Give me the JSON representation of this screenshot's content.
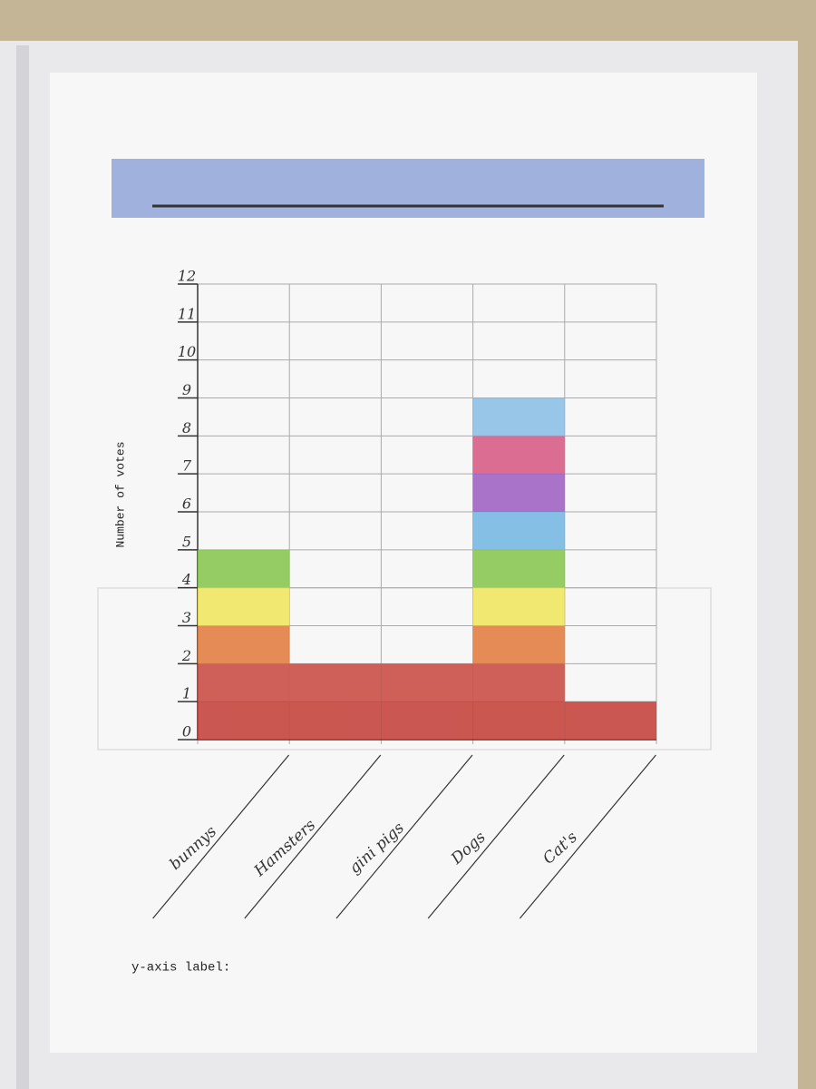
{
  "chart_data": {
    "type": "bar",
    "categories": [
      "bunnys",
      "Hamsters",
      "gini pigs",
      "Dogs",
      "Cat's"
    ],
    "values": [
      5,
      2,
      2,
      9,
      1
    ],
    "band_colors": [
      "#c23b33",
      "#c8463d",
      "#e2793a",
      "#f0e65a",
      "#84c54a",
      "#72b5e2",
      "#9a5cc0",
      "#d65580",
      "#86bde6"
    ],
    "ylim": [
      0,
      12
    ],
    "yticks": [
      0,
      1,
      2,
      3,
      4,
      5,
      6,
      7,
      8,
      9,
      10,
      11,
      12
    ],
    "y_label": "Number of votes",
    "footer_label": "y-axis label:",
    "grid": true
  }
}
